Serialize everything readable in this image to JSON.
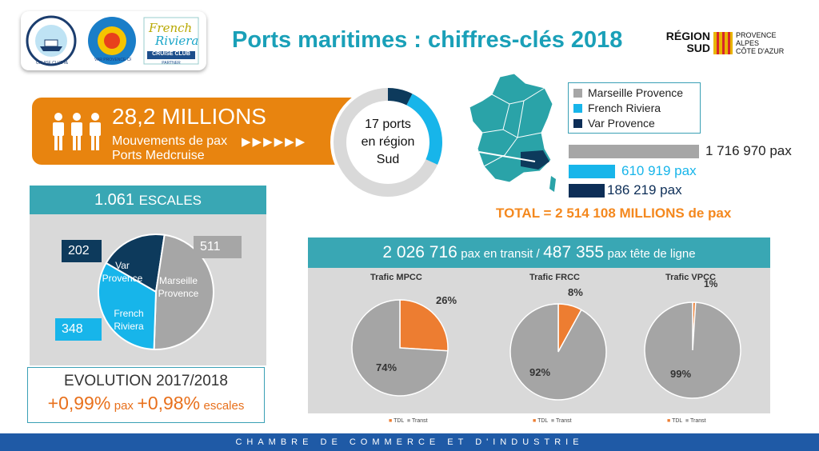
{
  "title": "Ports maritimes : chiffres-clés 2018",
  "logos": {
    "marseille": "CRUISE CLUB MARSEILLE PROVENCE",
    "var": "VAR PROVENCE CRUISE CLUB",
    "riviera_line1": "French",
    "riviera_line2": "Riviera",
    "riviera_badge": "CRUISE CLUB",
    "riviera_sub": "PARTNER",
    "region_line1": "RÉGION",
    "region_line2": "SUD",
    "region_sub1": "PROVENCE",
    "region_sub2": "ALPES",
    "region_sub3": "CÔTE D'AZUR"
  },
  "movements": {
    "value": "28,2 MILLIONS",
    "line1": "Mouvements de pax",
    "line2": "Ports Medcruise",
    "arrows": "▶▶▶▶▶▶"
  },
  "ports": {
    "line1": "17 ports",
    "line2": "en région",
    "line3": "Sud"
  },
  "legend": [
    {
      "label": "Marseille Provence",
      "color": "#a6a6a6"
    },
    {
      "label": "French Riviera",
      "color": "#17b5ea"
    },
    {
      "label": "Var Provence",
      "color": "#0d2e57"
    }
  ],
  "pax": [
    {
      "label": "1 716 970 pax",
      "value": 1716970,
      "color": "#a6a6a6"
    },
    {
      "label": "610 919 pax",
      "value": 610919,
      "color": "#17b5ea"
    },
    {
      "label": "186 219 pax",
      "value": 186219,
      "color": "#0d2e57"
    }
  ],
  "total": "TOTAL = 2 514 108 MILLIONS de pax",
  "escales": {
    "number": "1.061",
    "word": "ESCALES",
    "var_value": "202",
    "var_label1": "Var",
    "var_label2": "Provence",
    "mp_value": "511",
    "mp_label1": "Marseille",
    "mp_label2": "Provence",
    "fr_value": "348",
    "fr_label1": "French",
    "fr_label2": "Riviera"
  },
  "evolution": {
    "title": "EVOLUTION 2017/2018",
    "pax_value": "+0,99%",
    "pax_unit": "pax",
    "escales_value": "+0,98%",
    "escales_unit": "escales"
  },
  "transit": {
    "transit_value": "2 026 716",
    "transit_text": "pax en transit /",
    "tdl_value": "487 355",
    "tdl_text": "pax tête de ligne"
  },
  "chart_data": [
    {
      "type": "pie",
      "title": "",
      "categories": [
        "Var Provence",
        "Marseille Provence",
        "French Riviera"
      ],
      "values": [
        202,
        511,
        348
      ],
      "colors": [
        "#0d3a5c",
        "#a6a6a6",
        "#17b5ea"
      ]
    },
    {
      "type": "pie",
      "title": "Trafic MPCC",
      "categories": [
        "TDL",
        "Transt"
      ],
      "values": [
        26,
        74
      ],
      "labels": [
        "26%",
        "74%"
      ],
      "colors": [
        "#ed7d31",
        "#a5a5a5"
      ]
    },
    {
      "type": "pie",
      "title": "Trafic FRCC",
      "categories": [
        "TDL",
        "Transt"
      ],
      "values": [
        8,
        92
      ],
      "labels": [
        "8%",
        "92%"
      ],
      "colors": [
        "#ed7d31",
        "#a5a5a5"
      ]
    },
    {
      "type": "pie",
      "title": "Trafic VPCC",
      "categories": [
        "TDL",
        "Transt"
      ],
      "values": [
        1,
        99
      ],
      "labels": [
        "1%",
        "99%"
      ],
      "colors": [
        "#ed7d31",
        "#a5a5a5"
      ]
    }
  ],
  "footer": "CHAMBRE DE COMMERCE ET D'INDUSTRIE"
}
